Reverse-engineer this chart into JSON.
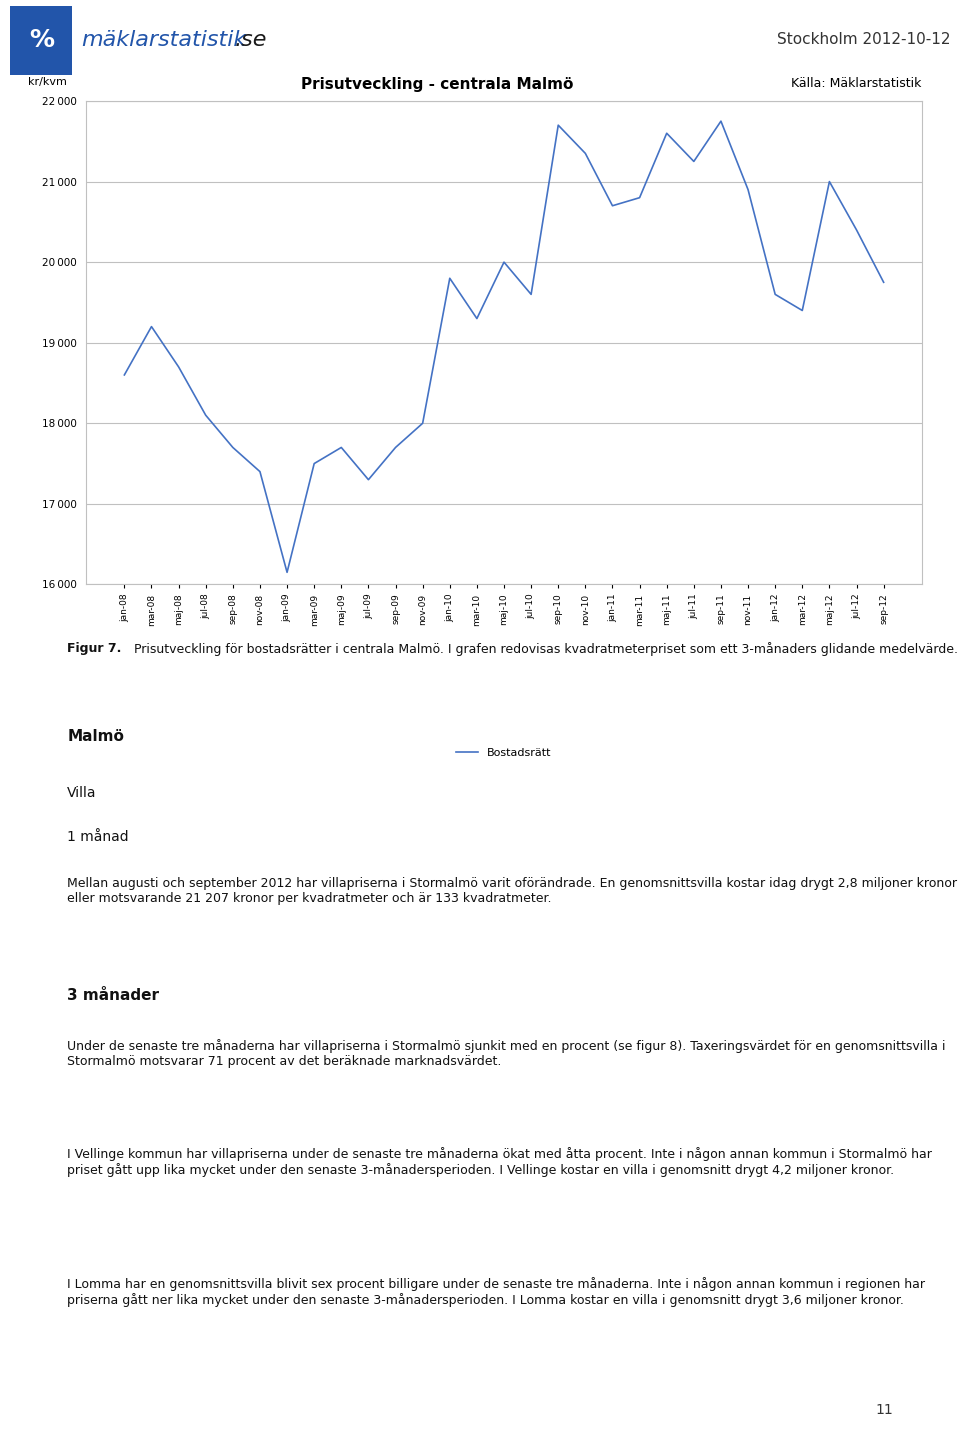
{
  "title": "Prisutveckling - centrala Malmö",
  "source_label": "Källa: Mäklarstatistik",
  "ylabel": "kr/kvm",
  "legend_label": "Bostadsrätt",
  "header_logo_text": "mäklarstatistik.se",
  "header_date": "Stockholm 2012-10-12",
  "page_number": "11",
  "ylim_min": 16000,
  "ylim_max": 22000,
  "yticks": [
    16000,
    17000,
    18000,
    19000,
    20000,
    21000,
    22000
  ],
  "line_color": "#4472C4",
  "grid_color": "#C0C0C0",
  "background_color": "#FFFFFF",
  "chart_bg": "#FFFFFF",
  "x_labels": [
    "jan-08",
    "mar-08",
    "maj-08",
    "jul-08",
    "sep-08",
    "nov-08",
    "jan-09",
    "mar-09",
    "maj-09",
    "jul-09",
    "sep-09",
    "nov-09",
    "jan-10",
    "mar-10",
    "maj-10",
    "jul-10",
    "sep-10",
    "nov-10",
    "jan-11",
    "mar-11",
    "maj-11",
    "jul-11",
    "sep-11",
    "nov-11",
    "jan-12",
    "mar-12",
    "maj-12",
    "jul-12",
    "sep-12"
  ],
  "y_values": [
    18600,
    19200,
    18700,
    18100,
    17700,
    17400,
    16150,
    17500,
    17700,
    17300,
    17700,
    18000,
    19800,
    19300,
    20000,
    19600,
    21700,
    21350,
    20700,
    20800,
    21600,
    21250,
    21750,
    20900,
    19600,
    19400,
    21000,
    20400,
    19750
  ],
  "figcaption_bold": "Figur 7.",
  "figcaption_text": " Prisutveckling för bostadsrätter i centrala Malmö. I grafen redovisas kvadratmeterpriset som ett 3-månaders glidande medelvärde.",
  "section_malmo_bold": "Malmö",
  "section_villa": "Villa",
  "section_1manad": "1 månad",
  "para_1manad": "Mellan augusti och september 2012 har villapriserna i Stormalmö varit oförändrade. En genomsnittsvilla kostar idag drygt 2,8 miljoner kronor eller motsvarande 21 207 kronor per kvadratmeter och är 133 kvadratmeter.",
  "section_3manader_bold": "3 månader",
  "para_3manader": "Under de senaste tre månaderna har villapriserna i Stormalmö sjunkit med en procent (se figur 8). Taxeringsvärdet för en genomsnittsvilla i Stormalmö motsvarar 71 procent av det beräknade marknadsvärdet.",
  "para_vellinge": "I Vellinge kommun har villapriserna under de senaste tre månaderna ökat med åtta procent. Inte i någon annan kommun i Stormalmö har priset gått upp lika mycket under den senaste 3-månadersperioden. I Vellinge kostar en villa i genomsnitt drygt 4,2 miljoner kronor.",
  "para_lomma": "I Lomma har en genomsnittsvilla blivit sex procent billigare under de senaste tre månaderna. Inte i någon annan kommun i regionen har priserna gått ner lika mycket under den senaste 3-månadersperioden. I Lomma kostar en villa i genomsnitt drygt 3,6 miljoner kronor."
}
